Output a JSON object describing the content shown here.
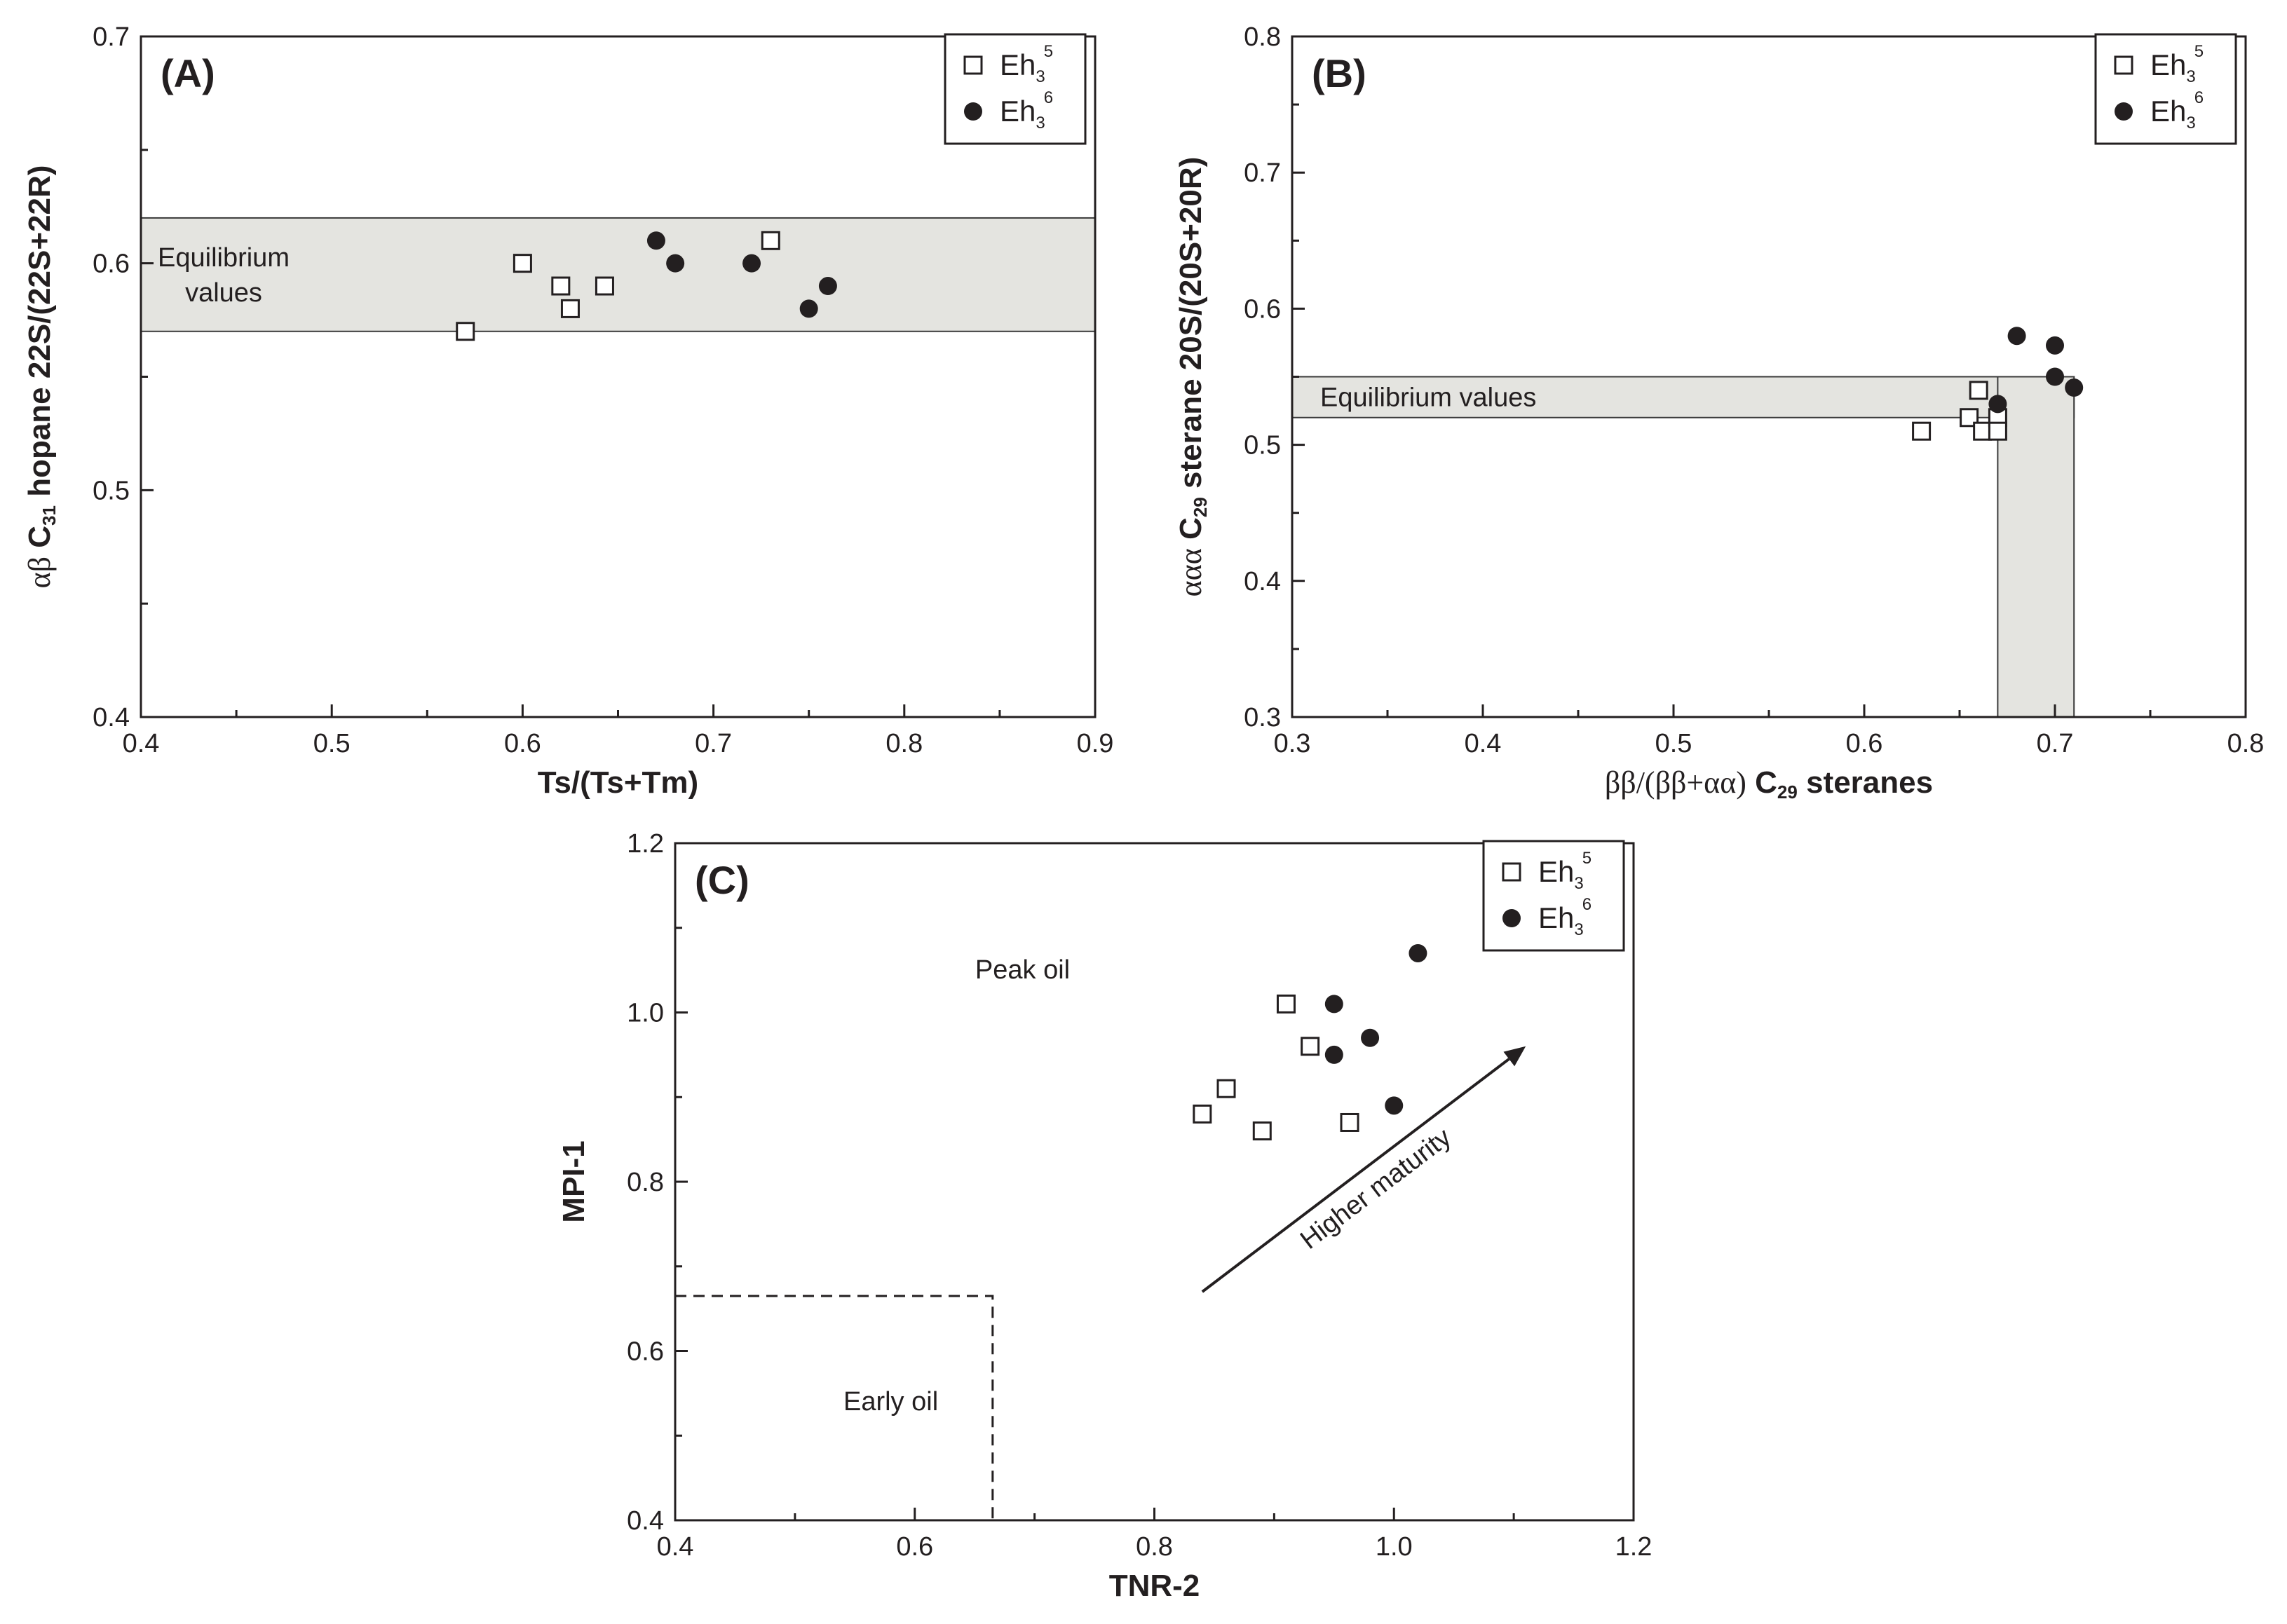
{
  "chart_data": [
    {
      "panel_label": "(A)",
      "type": "scatter",
      "xlabel": "Ts/(Ts+Tm)",
      "ylabel": {
        "greek": "αβ",
        "main": " C",
        "sub": "31",
        "rest": " hopane 22S/(22S+22R)"
      },
      "xlim": [
        0.4,
        0.9
      ],
      "ylim": [
        0.4,
        0.7
      ],
      "xticks": [
        0.4,
        0.5,
        0.6,
        0.7,
        0.8,
        0.9
      ],
      "xtick_labels": [
        "0.4",
        "0.5",
        "0.6",
        "0.7",
        "0.8",
        "0.9"
      ],
      "yticks": [
        0.4,
        0.5,
        0.6,
        0.7
      ],
      "ytick_labels": [
        "0.4",
        "0.5",
        "0.6",
        "0.7"
      ],
      "legend_position": "top-right",
      "bands": [
        {
          "label_lines": [
            "Equilibrium",
            "values"
          ],
          "y_range": [
            0.57,
            0.62
          ],
          "x_range": [
            0.4,
            0.9
          ],
          "color": "#e4e4e0"
        }
      ],
      "series": [
        {
          "name": "Eh",
          "sub": "3",
          "sup": "5",
          "marker": "open-square",
          "points": [
            [
              0.57,
              0.57
            ],
            [
              0.6,
              0.6
            ],
            [
              0.62,
              0.59
            ],
            [
              0.625,
              0.58
            ],
            [
              0.643,
              0.59
            ],
            [
              0.73,
              0.61
            ]
          ]
        },
        {
          "name": "Eh",
          "sub": "3",
          "sup": "6",
          "marker": "filled-circle",
          "points": [
            [
              0.67,
              0.61
            ],
            [
              0.68,
              0.6
            ],
            [
              0.72,
              0.6
            ],
            [
              0.75,
              0.58
            ],
            [
              0.76,
              0.59
            ]
          ]
        }
      ]
    },
    {
      "panel_label": "(B)",
      "type": "scatter",
      "xlabel": {
        "greek": "ββ/(ββ+αα)",
        "main": " C",
        "sub": "29",
        "rest": " steranes"
      },
      "ylabel": {
        "greek": "ααα",
        "main": " C",
        "sub": "29",
        "rest": " sterane 20S/(20S+20R)"
      },
      "xlim": [
        0.3,
        0.8
      ],
      "ylim": [
        0.3,
        0.8
      ],
      "xticks": [
        0.3,
        0.4,
        0.5,
        0.6,
        0.7,
        0.8
      ],
      "xtick_labels": [
        "0.3",
        "0.4",
        "0.5",
        "0.6",
        "0.7",
        "0.8"
      ],
      "yticks": [
        0.3,
        0.4,
        0.5,
        0.6,
        0.7,
        0.8
      ],
      "ytick_labels": [
        "0.3",
        "0.4",
        "0.5",
        "0.6",
        "0.7",
        "0.8"
      ],
      "legend_position": "top-right",
      "bands": [
        {
          "label_lines": [
            "Equilibrium values"
          ],
          "y_range": [
            0.52,
            0.55
          ],
          "x_range": [
            0.3,
            0.71
          ],
          "color": "#e4e4e0"
        },
        {
          "label_lines": [],
          "x_range": [
            0.67,
            0.71
          ],
          "y_range": [
            0.3,
            0.55
          ],
          "color": "#e4e4e0"
        }
      ],
      "series": [
        {
          "name": "Eh",
          "sub": "3",
          "sup": "5",
          "marker": "open-square",
          "points": [
            [
              0.63,
              0.51
            ],
            [
              0.655,
              0.52
            ],
            [
              0.66,
              0.54
            ],
            [
              0.662,
              0.51
            ],
            [
              0.67,
              0.52
            ],
            [
              0.67,
              0.51
            ]
          ]
        },
        {
          "name": "Eh",
          "sub": "3",
          "sup": "6",
          "marker": "filled-circle",
          "points": [
            [
              0.67,
              0.53
            ],
            [
              0.68,
              0.58
            ],
            [
              0.7,
              0.573
            ],
            [
              0.7,
              0.55
            ],
            [
              0.71,
              0.542
            ]
          ]
        }
      ]
    },
    {
      "panel_label": "(C)",
      "type": "scatter",
      "xlabel": "TNR-2",
      "ylabel": "MPI-1",
      "xlim": [
        0.4,
        1.2
      ],
      "ylim": [
        0.4,
        1.2
      ],
      "xticks": [
        0.4,
        0.6,
        0.8,
        1.0,
        1.2
      ],
      "xtick_labels": [
        "0.4",
        "0.6",
        "0.8",
        "1.0",
        "1.2"
      ],
      "yticks": [
        0.4,
        0.6,
        0.8,
        1.0,
        1.2
      ],
      "ytick_labels": [
        "0.4",
        "0.6",
        "0.8",
        "1.0",
        "1.2"
      ],
      "legend_position": "top-right",
      "regions": [
        {
          "label": "Peak oil",
          "at": [
            0.69,
            1.04
          ]
        },
        {
          "label": "Early oil",
          "at": [
            0.58,
            0.53
          ],
          "dashed_box": {
            "x_max": 0.665,
            "y_max": 0.665
          }
        }
      ],
      "arrow": {
        "label": "Higher maturity",
        "from": [
          0.84,
          0.67
        ],
        "to": [
          1.11,
          0.96
        ]
      },
      "series": [
        {
          "name": "Eh",
          "sub": "3",
          "sup": "5",
          "marker": "open-square",
          "points": [
            [
              0.84,
              0.88
            ],
            [
              0.86,
              0.91
            ],
            [
              0.89,
              0.86
            ],
            [
              0.91,
              1.01
            ],
            [
              0.93,
              0.96
            ],
            [
              0.963,
              0.87
            ]
          ]
        },
        {
          "name": "Eh",
          "sub": "3",
          "sup": "6",
          "marker": "filled-circle",
          "points": [
            [
              0.95,
              1.01
            ],
            [
              0.95,
              0.95
            ],
            [
              0.98,
              0.97
            ],
            [
              1.0,
              0.89
            ],
            [
              1.02,
              1.07
            ]
          ]
        }
      ]
    }
  ]
}
